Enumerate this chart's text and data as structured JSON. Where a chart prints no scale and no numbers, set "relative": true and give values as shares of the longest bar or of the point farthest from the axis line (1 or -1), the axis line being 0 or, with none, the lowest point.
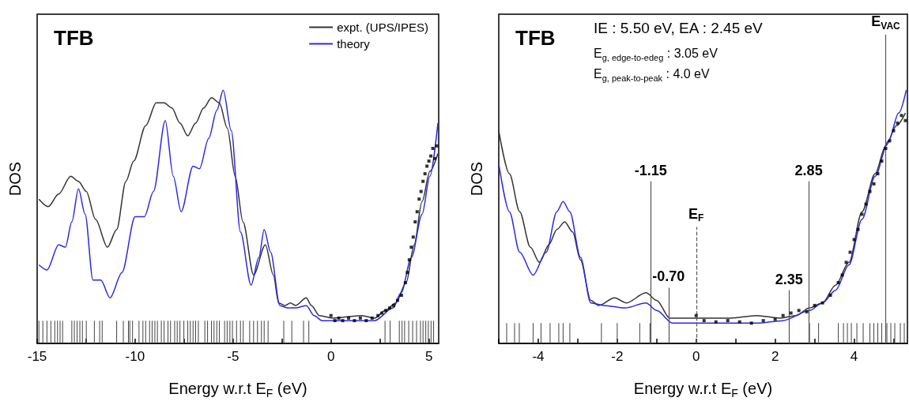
{
  "chart_data": [
    {
      "type": "line",
      "title": "TFB",
      "xlabel": "Energy w.r.t E$_{F}$ (eV)",
      "ylabel": "DOS",
      "xlim": [
        -15,
        5.5
      ],
      "xticks": [
        -15,
        {
          "value": -12.5,
          "label": null
        },
        -10,
        {
          "value": -7.5,
          "label": null
        },
        -5,
        {
          "value": -2.5,
          "label": null
        },
        0,
        {
          "value": 2.5,
          "label": null
        },
        5
      ],
      "relative": true,
      "tick_labels": "x",
      "legend": "top right",
      "marker": "none",
      "series": [
        {
          "name": "expt. (UPS/IPES)",
          "color": "#333333",
          "x": [
            -14.91,
            -14.44,
            -13.9,
            -13.29,
            -12.89,
            -12.49,
            -12.02,
            -11.41,
            -10.94,
            -10.47,
            -10.07,
            -9.46,
            -8.92,
            -8.52,
            -8.12,
            -7.71,
            -7.31,
            -6.91,
            -6.5,
            -6.1,
            -5.7,
            -5.29,
            -4.89,
            -4.49,
            -3.95,
            -3.35,
            -2.94,
            -2.67,
            -2.34,
            -2.07,
            -1.8,
            -1.26,
            -1.0,
            -0.59,
            0.08,
            1.56,
            2.23,
            2.77,
            3.31,
            3.84,
            4.25,
            4.65,
            5.05,
            5.46
          ],
          "values": [
            0.57,
            0.54,
            0.59,
            0.66,
            0.64,
            0.6,
            0.49,
            0.38,
            0.45,
            0.64,
            0.72,
            0.86,
            0.95,
            0.95,
            0.93,
            0.87,
            0.82,
            0.87,
            0.93,
            0.97,
            0.95,
            0.85,
            0.66,
            0.48,
            0.27,
            0.39,
            0.27,
            0.16,
            0.15,
            0.16,
            0.15,
            0.18,
            0.15,
            0.11,
            0.1,
            0.11,
            0.1,
            0.13,
            0.16,
            0.24,
            0.39,
            0.56,
            0.68,
            0.75
          ]
        },
        {
          "name": "theory",
          "color": "#2a2ae8",
          "x": [
            -14.91,
            -14.5,
            -13.9,
            -13.56,
            -13.23,
            -12.89,
            -12.55,
            -12.15,
            -11.75,
            -11.28,
            -10.67,
            -10.0,
            -9.53,
            -9.06,
            -8.46,
            -8.05,
            -7.65,
            -7.04,
            -6.71,
            -6.24,
            -5.83,
            -5.5,
            -5.09,
            -4.62,
            -4.08,
            -3.68,
            -3.41,
            -3.08,
            -2.61,
            -2.21,
            -1.8,
            -1.26,
            -0.86,
            -0.46,
            0.89,
            2.23,
            3.17,
            3.58,
            4.11,
            4.65,
            5.05,
            5.46
          ],
          "values": [
            0.31,
            0.29,
            0.39,
            0.38,
            0.48,
            0.61,
            0.51,
            0.25,
            0.25,
            0.18,
            0.28,
            0.5,
            0.5,
            0.6,
            0.88,
            0.66,
            0.52,
            0.7,
            0.69,
            0.81,
            0.92,
            1.0,
            0.84,
            0.44,
            0.23,
            0.34,
            0.45,
            0.36,
            0.15,
            0.14,
            0.14,
            0.15,
            0.11,
            0.09,
            0.09,
            0.09,
            0.14,
            0.2,
            0.34,
            0.51,
            0.66,
            0.87
          ]
        },
        {
          "type": "scatter",
          "marker": "square",
          "color": "#000000",
          "x": [
            0.0,
            0.2,
            0.4,
            0.6,
            0.9,
            1.2,
            1.5,
            1.8,
            2.1,
            2.4,
            2.6,
            2.8,
            3.0,
            3.2,
            3.4,
            3.6,
            3.8,
            3.9,
            4.0,
            4.1,
            4.2,
            4.3,
            4.4,
            4.5,
            4.6,
            4.7,
            4.8,
            4.9,
            5.0,
            5.1,
            5.2,
            5.3,
            5.4
          ],
          "values": [
            0.11,
            0.09,
            0.1,
            0.09,
            0.1,
            0.09,
            0.1,
            0.09,
            0.1,
            0.11,
            0.12,
            0.13,
            0.14,
            0.15,
            0.17,
            0.19,
            0.24,
            0.28,
            0.33,
            0.38,
            0.42,
            0.48,
            0.52,
            0.57,
            0.6,
            0.64,
            0.67,
            0.7,
            0.72,
            0.74,
            0.77,
            0.73,
            0.78
          ]
        },
        {
          "type": "bar",
          "color": "#444444",
          "x": [
            -14.91,
            -14.71,
            -14.5,
            -14.3,
            -14.1,
            -13.96,
            -13.83,
            -13.7,
            -13.23,
            -13.1,
            -12.96,
            -12.82,
            -12.69,
            -12.49,
            -12.08,
            -11.81,
            -11.68,
            -10.94,
            -10.6,
            -10.34,
            -10.27,
            -10.13,
            -9.8,
            -9.6,
            -9.46,
            -9.26,
            -9.13,
            -8.99,
            -8.86,
            -8.66,
            -8.52,
            -8.32,
            -8.19,
            -7.98,
            -7.85,
            -7.71,
            -7.51,
            -7.31,
            -7.18,
            -7.04,
            -6.91,
            -6.77,
            -6.44,
            -6.3,
            -6.1,
            -5.97,
            -5.83,
            -5.7,
            -5.43,
            -5.3,
            -5.16,
            -5.03,
            -4.82,
            -4.62,
            -4.48,
            -4.15,
            -3.95,
            -3.75,
            -3.55,
            -3.41,
            -3.21,
            -2.41,
            -2.0,
            -1.4,
            -1.13,
            2.76,
            3.02,
            3.49,
            3.63,
            3.76,
            3.97,
            4.17,
            4.37,
            4.57,
            4.7,
            4.84,
            4.97,
            5.11,
            5.24
          ],
          "values": [
            0.09,
            0.09,
            0.09,
            0.09,
            0.09,
            0.09,
            0.09,
            0.09,
            0.09,
            0.09,
            0.09,
            0.09,
            0.09,
            0.09,
            0.09,
            0.09,
            0.09,
            0.09,
            0.09,
            0.09,
            0.09,
            0.09,
            0.09,
            0.09,
            0.09,
            0.09,
            0.09,
            0.09,
            0.09,
            0.09,
            0.09,
            0.09,
            0.09,
            0.09,
            0.09,
            0.09,
            0.09,
            0.09,
            0.09,
            0.09,
            0.09,
            0.09,
            0.09,
            0.09,
            0.09,
            0.09,
            0.09,
            0.09,
            0.09,
            0.09,
            0.09,
            0.09,
            0.09,
            0.09,
            0.09,
            0.09,
            0.09,
            0.09,
            0.09,
            0.09,
            0.09,
            0.09,
            0.09,
            0.09,
            0.09,
            0.09,
            0.09,
            0.09,
            0.09,
            0.09,
            0.09,
            0.09,
            0.09,
            0.09,
            0.09,
            0.09,
            0.09,
            0.09,
            0.09
          ]
        }
      ]
    },
    {
      "type": "line",
      "title": "TFB",
      "xlabel": "Energy w.r.t E$_{F}$ (eV)",
      "ylabel": "DOS",
      "xlim": [
        -5,
        5.35
      ],
      "xticks": [
        {
          "value": -5,
          "label": null
        },
        -4,
        {
          "value": -3,
          "label": null
        },
        -2,
        {
          "value": -1,
          "label": null
        },
        0,
        {
          "value": 1,
          "label": null
        },
        2,
        {
          "value": 3,
          "label": null
        },
        4,
        {
          "value": 5,
          "label": null
        }
      ],
      "relative": true,
      "tick_labels": "x",
      "marker": "none",
      "annotations": [
        "IE : 5.50 eV, EA : 2.45 eV",
        "E$_{g, edge-to-edeg}$ : 3.05 eV",
        "E$_{g, peak-to-peak}$ : 4.0 eV",
        {
          "text": "-1.15",
          "x": -1.15,
          "y": 0.64
        },
        {
          "text": "-0.70",
          "x": -0.7,
          "y": 0.22
        },
        {
          "text": "E$_{F}$",
          "x": 0,
          "y": 0.46
        },
        {
          "text": "2.35",
          "x": 2.35,
          "y": 0.21
        },
        {
          "text": "2.85",
          "x": 2.85,
          "y": 0.64
        },
        {
          "text": "E$_{VAC}$",
          "x": 4.8,
          "y": 1.22
        }
      ],
      "ref_lines": [
        {
          "axis": "x",
          "value": -1.15,
          "color": "#555555"
        },
        {
          "axis": "x",
          "value": -0.7,
          "color": "#555555"
        },
        {
          "axis": "x",
          "value": 0,
          "color": "#555555",
          "line_style": "dashed"
        },
        {
          "axis": "x",
          "value": 2.35,
          "color": "#555555"
        },
        {
          "axis": "x",
          "value": 2.85,
          "color": "#555555"
        },
        {
          "axis": "x",
          "value": 4.8,
          "color": "#555555"
        }
      ],
      "series": [
        {
          "color": "#333333",
          "x": [
            -5.0,
            -4.73,
            -4.47,
            -4.2,
            -3.97,
            -3.73,
            -3.53,
            -3.33,
            -3.13,
            -2.93,
            -2.67,
            -2.47,
            -2.07,
            -1.77,
            -1.27,
            -1.0,
            -0.67,
            -0.07,
            0.87,
            1.53,
            2.13,
            2.53,
            2.87,
            3.2,
            3.53,
            3.87,
            4.2,
            4.53,
            4.8,
            5.07,
            5.3
          ],
          "values": [
            0.84,
            0.67,
            0.52,
            0.38,
            0.32,
            0.39,
            0.45,
            0.48,
            0.44,
            0.33,
            0.17,
            0.15,
            0.18,
            0.16,
            0.2,
            0.17,
            0.1,
            0.1,
            0.1,
            0.11,
            0.1,
            0.11,
            0.14,
            0.16,
            0.23,
            0.32,
            0.52,
            0.67,
            0.78,
            0.86,
            0.91
          ]
        },
        {
          "color": "#2a2ae8",
          "x": [
            -5.0,
            -4.73,
            -4.47,
            -4.13,
            -3.8,
            -3.53,
            -3.37,
            -3.2,
            -2.93,
            -2.67,
            -2.33,
            -1.8,
            -1.27,
            -1.0,
            -0.6,
            0.2,
            1.53,
            2.2,
            2.87,
            3.2,
            3.53,
            3.87,
            4.2,
            4.53,
            4.87,
            5.13,
            5.32
          ],
          "values": [
            0.71,
            0.52,
            0.36,
            0.27,
            0.36,
            0.52,
            0.56,
            0.52,
            0.34,
            0.16,
            0.15,
            0.14,
            0.16,
            0.13,
            0.08,
            0.08,
            0.08,
            0.09,
            0.13,
            0.16,
            0.21,
            0.31,
            0.49,
            0.66,
            0.8,
            0.91,
            1.0
          ]
        },
        {
          "type": "scatter",
          "marker": "square",
          "color": "#000000",
          "x": [
            0.0,
            0.2,
            0.5,
            0.8,
            1.1,
            1.4,
            1.7,
            2.0,
            2.2,
            2.4,
            2.6,
            2.8,
            3.0,
            3.2,
            3.4,
            3.6,
            3.7,
            3.8,
            3.9,
            4.0,
            4.1,
            4.2,
            4.3,
            4.4,
            4.5,
            4.6,
            4.7,
            4.8,
            4.9,
            5.0,
            5.1,
            5.2,
            5.3
          ],
          "values": [
            0.11,
            0.09,
            0.085,
            0.09,
            0.085,
            0.08,
            0.09,
            0.095,
            0.11,
            0.12,
            0.13,
            0.125,
            0.15,
            0.16,
            0.19,
            0.24,
            0.27,
            0.32,
            0.36,
            0.41,
            0.45,
            0.51,
            0.55,
            0.6,
            0.63,
            0.67,
            0.72,
            0.77,
            0.8,
            0.84,
            0.87,
            0.9,
            0.88
          ]
        },
        {
          "type": "bar",
          "color": "#444444",
          "x": [
            -4.8,
            -4.6,
            -4.48,
            -4.13,
            -3.93,
            -3.7,
            -3.48,
            -3.37,
            -3.2,
            -2.4,
            -2.0,
            -1.43,
            -1.17,
            2.87,
            3.1,
            3.6,
            3.73,
            3.83,
            3.93,
            4.07,
            4.23,
            4.4,
            4.5,
            4.6,
            4.7,
            4.83,
            4.93,
            5.03,
            5.17,
            5.27
          ],
          "values": [
            0.08,
            0.08,
            0.08,
            0.08,
            0.08,
            0.08,
            0.08,
            0.08,
            0.08,
            0.08,
            0.08,
            0.08,
            0.08,
            0.08,
            0.08,
            0.08,
            0.08,
            0.08,
            0.08,
            0.08,
            0.08,
            0.08,
            0.08,
            0.08,
            0.08,
            0.08,
            0.08,
            0.08,
            0.08,
            0.08
          ]
        }
      ]
    }
  ]
}
